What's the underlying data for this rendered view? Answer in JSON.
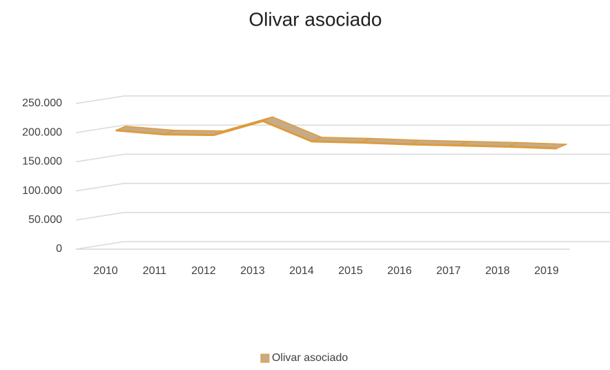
{
  "chart_data": {
    "type": "line3d",
    "title": "Olivar asociado",
    "categories": [
      "2010",
      "2011",
      "2012",
      "2013",
      "2014",
      "2015",
      "2016",
      "2017",
      "2018",
      "2019"
    ],
    "series": [
      {
        "name": "Olivar asociado",
        "color": "#c8ab85",
        "edge_color": "#dc9c3c",
        "values": [
          204000,
          197000,
          196000,
          220000,
          185000,
          183000,
          180000,
          178000,
          176000,
          173000
        ]
      }
    ],
    "ylim": [
      0,
      250000
    ],
    "yticks": [
      0,
      {
        "value": 50000,
        "label": "50.000"
      },
      {
        "value": 100000,
        "label": "100.000"
      },
      {
        "value": 150000,
        "label": "150.000"
      },
      {
        "value": 200000,
        "label": "200.000"
      },
      {
        "value": 250000,
        "label": "250.000"
      }
    ],
    "grid": true,
    "legend": "bottom"
  }
}
